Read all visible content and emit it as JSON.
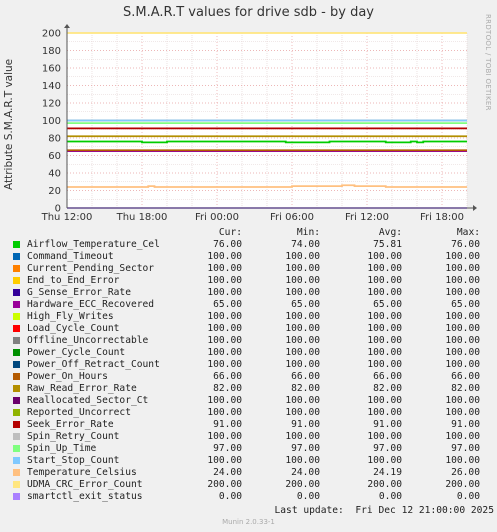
{
  "chart_data": {
    "type": "line",
    "title": "S.M.A.R.T values for drive sdb - by day",
    "ylabel": "Attribute S.M.A.R.T value",
    "xlabel": "",
    "ylim": [
      0,
      200
    ],
    "yticks": [
      0,
      20,
      40,
      60,
      80,
      100,
      120,
      140,
      160,
      180,
      200
    ],
    "xlim": [
      "Thu 12:00",
      "Fri 20:00"
    ],
    "xlim_hours": [
      0,
      32
    ],
    "xticks": [
      {
        "label": "Thu 12:00",
        "hour": 0
      },
      {
        "label": "Thu 18:00",
        "hour": 6
      },
      {
        "label": "Fri 00:00",
        "hour": 12
      },
      {
        "label": "Fri 06:00",
        "hour": 18
      },
      {
        "label": "Fri 12:00",
        "hour": 24
      },
      {
        "label": "Fri 18:00",
        "hour": 30
      }
    ],
    "grid": true,
    "columns": [
      "Cur:",
      "Min:",
      "Avg:",
      "Max:"
    ],
    "series": [
      {
        "name": "Airflow_Temperature_Cel",
        "color": "#00cc00",
        "cur": "76.00",
        "min": "74.00",
        "avg": "75.81",
        "max": "76.00",
        "points": [
          [
            0,
            76
          ],
          [
            5.5,
            76
          ],
          [
            6,
            75
          ],
          [
            7.5,
            75
          ],
          [
            8,
            76
          ],
          [
            17,
            76
          ],
          [
            17.5,
            75
          ],
          [
            20.5,
            75
          ],
          [
            21,
            76
          ],
          [
            25,
            76
          ],
          [
            25.5,
            75
          ],
          [
            27,
            75
          ],
          [
            27.5,
            76
          ],
          [
            28,
            75
          ],
          [
            28.5,
            76
          ],
          [
            32,
            76
          ]
        ]
      },
      {
        "name": "Command_Timeout",
        "color": "#0066b3",
        "cur": "100.00",
        "min": "100.00",
        "avg": "100.00",
        "max": "100.00",
        "points": [
          [
            0,
            100
          ],
          [
            32,
            100
          ]
        ]
      },
      {
        "name": "Current_Pending_Sector",
        "color": "#ff8000",
        "cur": "100.00",
        "min": "100.00",
        "avg": "100.00",
        "max": "100.00",
        "points": [
          [
            0,
            100
          ],
          [
            32,
            100
          ]
        ]
      },
      {
        "name": "End_to_End_Error",
        "color": "#ffcc00",
        "cur": "100.00",
        "min": "100.00",
        "avg": "100.00",
        "max": "100.00",
        "points": [
          [
            0,
            100
          ],
          [
            32,
            100
          ]
        ]
      },
      {
        "name": "G_Sense_Error_Rate",
        "color": "#330099",
        "cur": "100.00",
        "min": "100.00",
        "avg": "100.00",
        "max": "100.00",
        "points": [
          [
            0,
            100
          ],
          [
            32,
            100
          ]
        ]
      },
      {
        "name": "Hardware_ECC_Recovered",
        "color": "#990099",
        "cur": "65.00",
        "min": "65.00",
        "avg": "65.00",
        "max": "65.00",
        "points": [
          [
            0,
            65
          ],
          [
            32,
            65
          ]
        ]
      },
      {
        "name": "High_Fly_Writes",
        "color": "#ccff00",
        "cur": "100.00",
        "min": "100.00",
        "avg": "100.00",
        "max": "100.00",
        "points": [
          [
            0,
            100
          ],
          [
            32,
            100
          ]
        ]
      },
      {
        "name": "Load_Cycle_Count",
        "color": "#ff0000",
        "cur": "100.00",
        "min": "100.00",
        "avg": "100.00",
        "max": "100.00",
        "points": [
          [
            0,
            100
          ],
          [
            32,
            100
          ]
        ]
      },
      {
        "name": "Offline_Uncorrectable",
        "color": "#808080",
        "cur": "100.00",
        "min": "100.00",
        "avg": "100.00",
        "max": "100.00",
        "points": [
          [
            0,
            100
          ],
          [
            32,
            100
          ]
        ]
      },
      {
        "name": "Power_Cycle_Count",
        "color": "#008f00",
        "cur": "100.00",
        "min": "100.00",
        "avg": "100.00",
        "max": "100.00",
        "points": [
          [
            0,
            100
          ],
          [
            32,
            100
          ]
        ]
      },
      {
        "name": "Power_Off_Retract_Count",
        "color": "#00487d",
        "cur": "100.00",
        "min": "100.00",
        "avg": "100.00",
        "max": "100.00",
        "points": [
          [
            0,
            100
          ],
          [
            32,
            100
          ]
        ]
      },
      {
        "name": "Power_On_Hours",
        "color": "#b35a00",
        "cur": "66.00",
        "min": "66.00",
        "avg": "66.00",
        "max": "66.00",
        "points": [
          [
            0,
            66
          ],
          [
            32,
            66
          ]
        ]
      },
      {
        "name": "Raw_Read_Error_Rate",
        "color": "#b38f00",
        "cur": "82.00",
        "min": "82.00",
        "avg": "82.00",
        "max": "82.00",
        "points": [
          [
            0,
            82
          ],
          [
            32,
            82
          ]
        ]
      },
      {
        "name": "Reallocated_Sector_Ct",
        "color": "#6b006b",
        "cur": "100.00",
        "min": "100.00",
        "avg": "100.00",
        "max": "100.00",
        "points": [
          [
            0,
            100
          ],
          [
            32,
            100
          ]
        ]
      },
      {
        "name": "Reported_Uncorrect",
        "color": "#8fb300",
        "cur": "100.00",
        "min": "100.00",
        "avg": "100.00",
        "max": "100.00",
        "points": [
          [
            0,
            100
          ],
          [
            32,
            100
          ]
        ]
      },
      {
        "name": "Seek_Error_Rate",
        "color": "#b30000",
        "cur": "91.00",
        "min": "91.00",
        "avg": "91.00",
        "max": "91.00",
        "points": [
          [
            0,
            91
          ],
          [
            32,
            91
          ]
        ]
      },
      {
        "name": "Spin_Retry_Count",
        "color": "#bebebe",
        "cur": "100.00",
        "min": "100.00",
        "avg": "100.00",
        "max": "100.00",
        "points": [
          [
            0,
            100
          ],
          [
            32,
            100
          ]
        ]
      },
      {
        "name": "Spin_Up_Time",
        "color": "#80ff80",
        "cur": "97.00",
        "min": "97.00",
        "avg": "97.00",
        "max": "97.00",
        "points": [
          [
            0,
            97
          ],
          [
            32,
            97
          ]
        ]
      },
      {
        "name": "Start_Stop_Count",
        "color": "#80c9ff",
        "cur": "100.00",
        "min": "100.00",
        "avg": "100.00",
        "max": "100.00",
        "points": [
          [
            0,
            100
          ],
          [
            32,
            100
          ]
        ]
      },
      {
        "name": "Temperature_Celsius",
        "color": "#ffc080",
        "cur": "24.00",
        "min": "24.00",
        "avg": "24.19",
        "max": "26.00",
        "points": [
          [
            0,
            24
          ],
          [
            6,
            24
          ],
          [
            6.5,
            25
          ],
          [
            7,
            24
          ],
          [
            17.5,
            24
          ],
          [
            18,
            25
          ],
          [
            21.5,
            25
          ],
          [
            22,
            26
          ],
          [
            23,
            25
          ],
          [
            25,
            25
          ],
          [
            25.5,
            24
          ],
          [
            32,
            24
          ]
        ]
      },
      {
        "name": "UDMA_CRC_Error_Count",
        "color": "#ffe680",
        "cur": "200.00",
        "min": "200.00",
        "avg": "200.00",
        "max": "200.00",
        "points": [
          [
            0,
            200
          ],
          [
            32,
            200
          ]
        ]
      },
      {
        "name": "smartctl_exit_status",
        "color": "#aa80ff",
        "cur": "0.00",
        "min": "0.00",
        "avg": "0.00",
        "max": "0.00",
        "points": [
          [
            0,
            0
          ],
          [
            32,
            0
          ]
        ]
      }
    ]
  },
  "footer": {
    "last_update": "Last update:  Fri Dec 12 21:00:00 2025",
    "version": "Munin 2.0.33-1",
    "watermark": "RRDTOOL / TOBI OETIKER"
  }
}
